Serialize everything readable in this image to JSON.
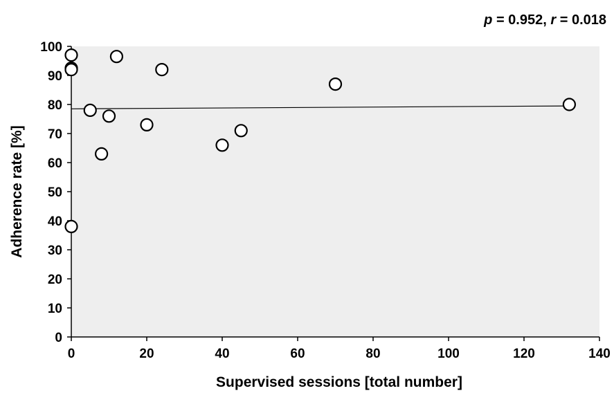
{
  "annotation": {
    "p_symbol": "p",
    "p_value": " = 0.952, ",
    "r_symbol": "r",
    "r_value": " = 0.018"
  },
  "colors": {
    "plot_background": "#eeeeee",
    "marker_stroke": "#000000",
    "marker_fill": "#ffffff",
    "trend_line": "#000000"
  },
  "chart_data": {
    "type": "scatter",
    "xlabel": "Supervised sessions [total number]",
    "ylabel": "Adherence rate [%]",
    "xlim": [
      0,
      140
    ],
    "ylim": [
      0,
      100
    ],
    "x_ticks": [
      0,
      20,
      40,
      60,
      80,
      100,
      120,
      140
    ],
    "y_ticks": [
      0,
      10,
      20,
      30,
      40,
      50,
      60,
      70,
      80,
      90,
      100
    ],
    "grid": false,
    "legend": "none",
    "points": [
      {
        "x": 0,
        "y": 97
      },
      {
        "x": 0,
        "y": 92.5
      },
      {
        "x": 0,
        "y": 92
      },
      {
        "x": 0,
        "y": 38
      },
      {
        "x": 5,
        "y": 78
      },
      {
        "x": 8,
        "y": 63
      },
      {
        "x": 10,
        "y": 76
      },
      {
        "x": 12,
        "y": 96.5
      },
      {
        "x": 20,
        "y": 73
      },
      {
        "x": 24,
        "y": 92
      },
      {
        "x": 40,
        "y": 66
      },
      {
        "x": 45,
        "y": 71
      },
      {
        "x": 70,
        "y": 87
      },
      {
        "x": 132,
        "y": 80
      }
    ],
    "trendline": {
      "x": [
        0,
        132
      ],
      "y": [
        78.5,
        79.5
      ]
    },
    "annotation_text": "p = 0.952, r = 0.018"
  }
}
